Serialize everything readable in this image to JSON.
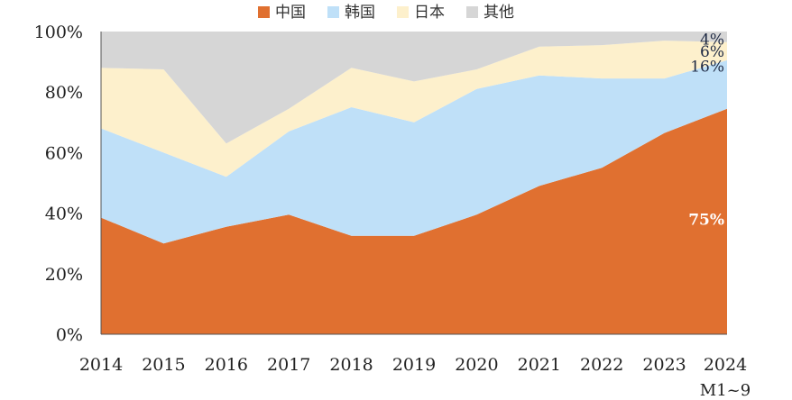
{
  "chart_data": {
    "type": "area",
    "stacked": true,
    "percent": true,
    "title": "",
    "xlabel": "",
    "ylabel": "",
    "ylim": [
      0,
      100
    ],
    "grid": false,
    "legend_position": "top",
    "categories": [
      "2014",
      "2015",
      "2016",
      "2017",
      "2018",
      "2019",
      "2020",
      "2021",
      "2022",
      "2023",
      "2024"
    ],
    "last_category_sublabel": "M1~9",
    "y_ticks": [
      "0%",
      "20%",
      "40%",
      "60%",
      "80%",
      "100%"
    ],
    "series": [
      {
        "name": "中国",
        "color": "#e07030",
        "values": [
          38.5,
          30,
          35.5,
          39.5,
          32.5,
          32.5,
          39.5,
          49,
          55,
          66.5,
          74.5
        ]
      },
      {
        "name": "韩国",
        "color": "#bfe0f8",
        "values": [
          29.5,
          30,
          16.5,
          27.5,
          42.5,
          37.5,
          41.5,
          36.5,
          29.5,
          18,
          16
        ]
      },
      {
        "name": "日本",
        "color": "#fdf0cc",
        "values": [
          20,
          27.5,
          11,
          7.5,
          13,
          13.5,
          6.5,
          9.5,
          11,
          12.5,
          6
        ]
      },
      {
        "name": "其他",
        "color": "#d6d6d6",
        "values": [
          12,
          12.5,
          37,
          25.5,
          12,
          16.5,
          12.5,
          5,
          4.5,
          3,
          3.5
        ]
      }
    ],
    "annotations": [
      {
        "text": "4%",
        "series": "其他"
      },
      {
        "text": "6%",
        "series": "日本"
      },
      {
        "text": "16%",
        "series": "韩国"
      },
      {
        "text": "75%",
        "series": "中国"
      }
    ]
  }
}
